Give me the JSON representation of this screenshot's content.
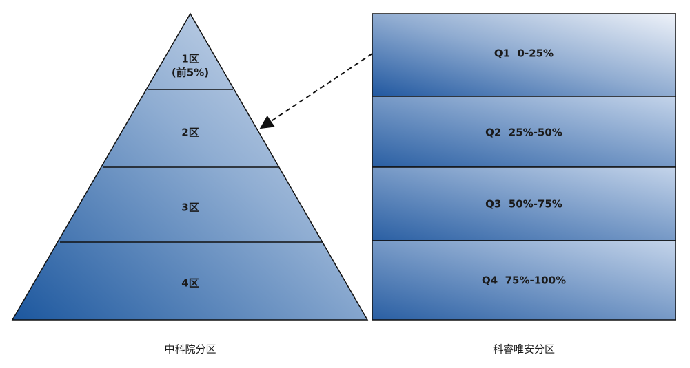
{
  "pyramid": {
    "levels": [
      {
        "label": "1区",
        "sublabel": "(前5%)"
      },
      {
        "label": "2区"
      },
      {
        "label": "3区"
      },
      {
        "label": "4区"
      }
    ],
    "caption": "中科院分区"
  },
  "quartiles": {
    "boxes": [
      "Q1  0-25%",
      "Q2  25%-50%",
      "Q3  50%-75%",
      "Q4  75%-100%"
    ],
    "caption": "科睿唯安分区"
  }
}
